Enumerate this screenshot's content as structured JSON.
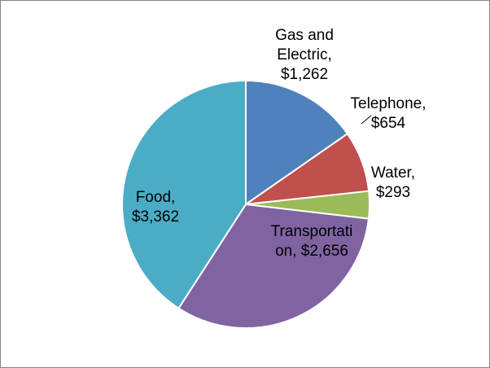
{
  "chart_data": {
    "type": "pie",
    "title": "",
    "start_angle_deg": 0,
    "direction": "clockwise",
    "slices": [
      {
        "category": "Gas and Electric",
        "value": 1262,
        "label_lines": [
          "Gas and",
          "Electric,",
          "$1,262"
        ],
        "color": "#4F81BD"
      },
      {
        "category": "Telephone",
        "value": 654,
        "label_lines": [
          "Telephone,",
          "$654"
        ],
        "color": "#C0504D"
      },
      {
        "category": "Water",
        "value": 293,
        "label_lines": [
          "Water,",
          "$293"
        ],
        "color": "#9BBB59"
      },
      {
        "category": "Transportation",
        "value": 2656,
        "label_lines": [
          "Transportati",
          "on,  $2,656"
        ],
        "color": "#8064A2"
      },
      {
        "category": "Food",
        "value": 3362,
        "label_lines": [
          "Food,",
          "$3,362"
        ],
        "color": "#4BACC6"
      }
    ],
    "legend": "none",
    "data_labels": "category, value"
  }
}
